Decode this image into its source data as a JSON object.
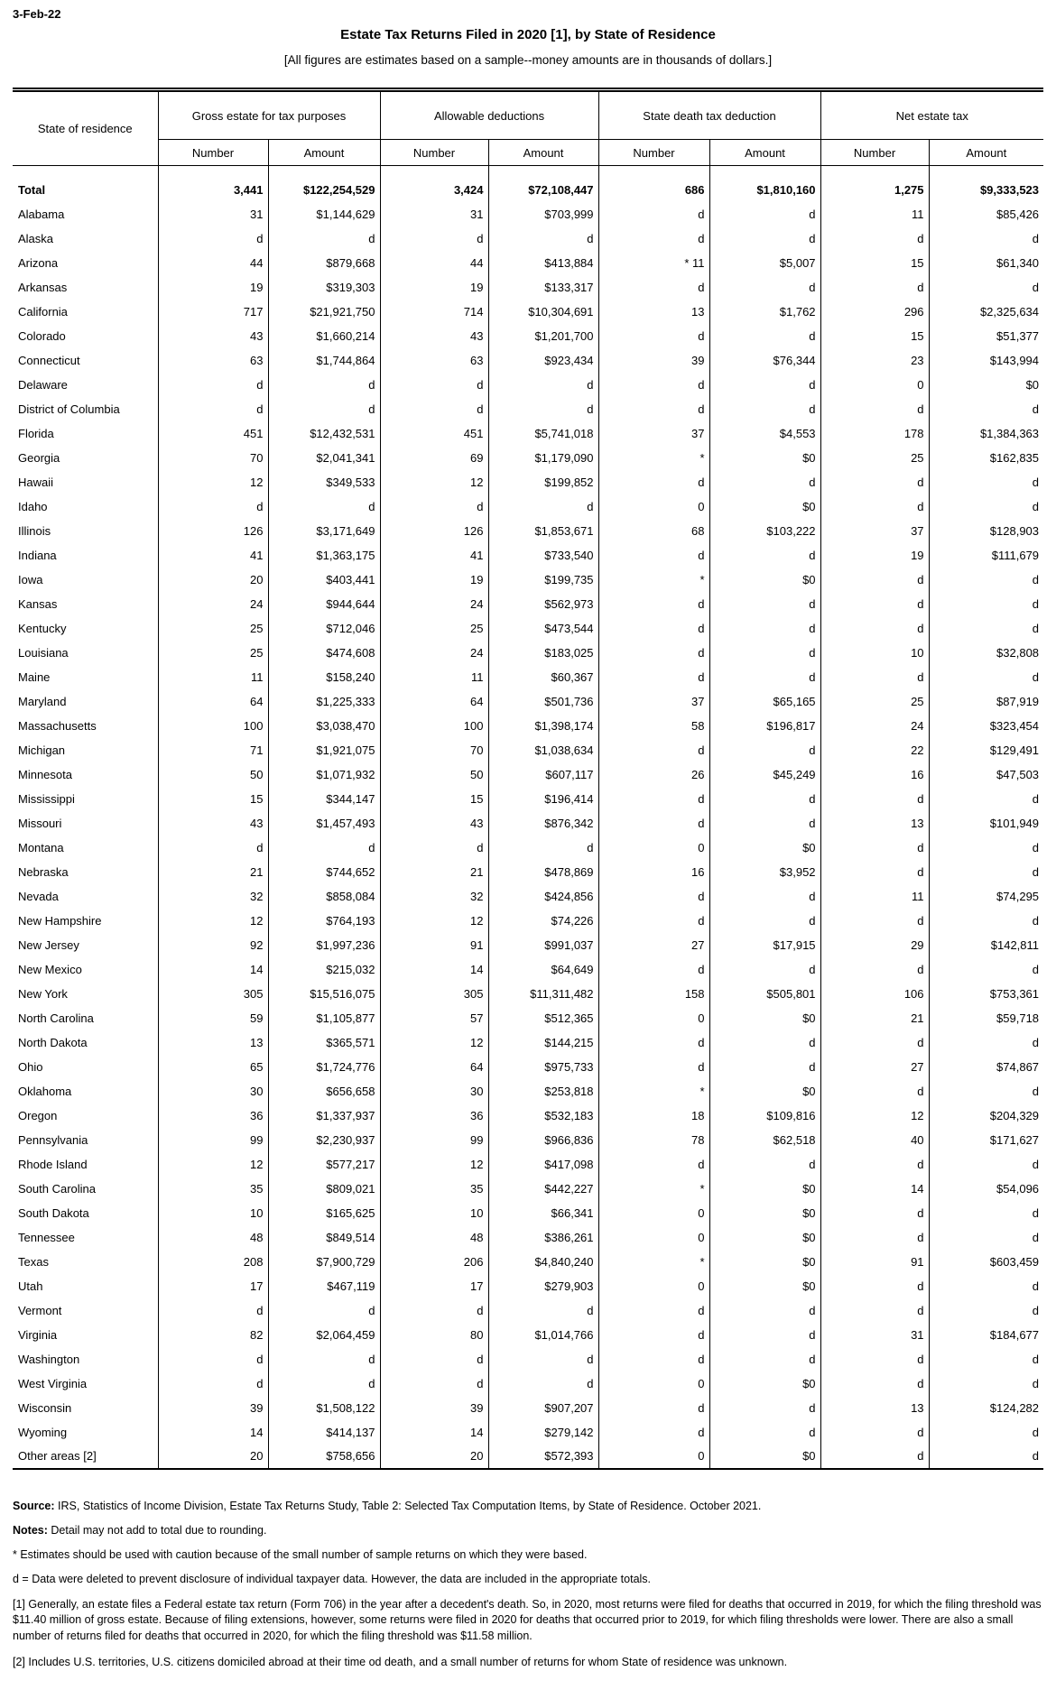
{
  "page": {
    "date": "3-Feb-22",
    "title": "Estate Tax Returns Filed in 2020 [1], by State of Residence",
    "subtitle": "[All figures are estimates based on a sample--money amounts are in thousands of dollars.]"
  },
  "table": {
    "row_header": "State of residence",
    "col_groups": [
      {
        "label": "Gross estate for tax purposes"
      },
      {
        "label": "Allowable deductions"
      },
      {
        "label": "State death tax deduction"
      },
      {
        "label": "Net estate tax"
      }
    ],
    "sub_headers": [
      "Number",
      "Amount"
    ],
    "rows": [
      {
        "state": "Total",
        "bold": true,
        "values": [
          "3,441",
          "$122,254,529",
          "3,424",
          "$72,108,447",
          "686",
          "$1,810,160",
          "1,275",
          "$9,333,523"
        ]
      },
      {
        "state": "Alabama",
        "values": [
          "31",
          "$1,144,629",
          "31",
          "$703,999",
          "d",
          "d",
          "11",
          "$85,426"
        ]
      },
      {
        "state": "Alaska",
        "values": [
          "d",
          "d",
          "d",
          "d",
          "d",
          "d",
          "d",
          "d"
        ]
      },
      {
        "state": "Arizona",
        "values": [
          "44",
          "$879,668",
          "44",
          "$413,884",
          "* 11",
          "$5,007",
          "15",
          "$61,340"
        ]
      },
      {
        "state": "Arkansas",
        "values": [
          "19",
          "$319,303",
          "19",
          "$133,317",
          "d",
          "d",
          "d",
          "d"
        ]
      },
      {
        "state": "California",
        "values": [
          "717",
          "$21,921,750",
          "714",
          "$10,304,691",
          "13",
          "$1,762",
          "296",
          "$2,325,634"
        ]
      },
      {
        "state": "Colorado",
        "values": [
          "43",
          "$1,660,214",
          "43",
          "$1,201,700",
          "d",
          "d",
          "15",
          "$51,377"
        ]
      },
      {
        "state": "Connecticut",
        "values": [
          "63",
          "$1,744,864",
          "63",
          "$923,434",
          "39",
          "$76,344",
          "23",
          "$143,994"
        ]
      },
      {
        "state": "Delaware",
        "values": [
          "d",
          "d",
          "d",
          "d",
          "d",
          "d",
          "0",
          "$0"
        ]
      },
      {
        "state": "District of Columbia",
        "values": [
          "d",
          "d",
          "d",
          "d",
          "d",
          "d",
          "d",
          "d"
        ]
      },
      {
        "state": "Florida",
        "values": [
          "451",
          "$12,432,531",
          "451",
          "$5,741,018",
          "37",
          "$4,553",
          "178",
          "$1,384,363"
        ]
      },
      {
        "state": "Georgia",
        "values": [
          "70",
          "$2,041,341",
          "69",
          "$1,179,090",
          "*",
          "$0",
          "25",
          "$162,835"
        ]
      },
      {
        "state": "Hawaii",
        "values": [
          "12",
          "$349,533",
          "12",
          "$199,852",
          "d",
          "d",
          "d",
          "d"
        ]
      },
      {
        "state": "Idaho",
        "values": [
          "d",
          "d",
          "d",
          "d",
          "0",
          "$0",
          "d",
          "d"
        ]
      },
      {
        "state": "Illinois",
        "values": [
          "126",
          "$3,171,649",
          "126",
          "$1,853,671",
          "68",
          "$103,222",
          "37",
          "$128,903"
        ]
      },
      {
        "state": "Indiana",
        "values": [
          "41",
          "$1,363,175",
          "41",
          "$733,540",
          "d",
          "d",
          "19",
          "$111,679"
        ]
      },
      {
        "state": "Iowa",
        "values": [
          "20",
          "$403,441",
          "19",
          "$199,735",
          "*",
          "$0",
          "d",
          "d"
        ]
      },
      {
        "state": "Kansas",
        "values": [
          "24",
          "$944,644",
          "24",
          "$562,973",
          "d",
          "d",
          "d",
          "d"
        ]
      },
      {
        "state": "Kentucky",
        "values": [
          "25",
          "$712,046",
          "25",
          "$473,544",
          "d",
          "d",
          "d",
          "d"
        ]
      },
      {
        "state": "Louisiana",
        "values": [
          "25",
          "$474,608",
          "24",
          "$183,025",
          "d",
          "d",
          "10",
          "$32,808"
        ]
      },
      {
        "state": "Maine",
        "values": [
          "11",
          "$158,240",
          "11",
          "$60,367",
          "d",
          "d",
          "d",
          "d"
        ]
      },
      {
        "state": "Maryland",
        "values": [
          "64",
          "$1,225,333",
          "64",
          "$501,736",
          "37",
          "$65,165",
          "25",
          "$87,919"
        ]
      },
      {
        "state": "Massachusetts",
        "values": [
          "100",
          "$3,038,470",
          "100",
          "$1,398,174",
          "58",
          "$196,817",
          "24",
          "$323,454"
        ]
      },
      {
        "state": "Michigan",
        "values": [
          "71",
          "$1,921,075",
          "70",
          "$1,038,634",
          "d",
          "d",
          "22",
          "$129,491"
        ]
      },
      {
        "state": "Minnesota",
        "values": [
          "50",
          "$1,071,932",
          "50",
          "$607,117",
          "26",
          "$45,249",
          "16",
          "$47,503"
        ]
      },
      {
        "state": "Mississippi",
        "values": [
          "15",
          "$344,147",
          "15",
          "$196,414",
          "d",
          "d",
          "d",
          "d"
        ]
      },
      {
        "state": "Missouri",
        "values": [
          "43",
          "$1,457,493",
          "43",
          "$876,342",
          "d",
          "d",
          "13",
          "$101,949"
        ]
      },
      {
        "state": "Montana",
        "values": [
          "d",
          "d",
          "d",
          "d",
          "0",
          "$0",
          "d",
          "d"
        ]
      },
      {
        "state": "Nebraska",
        "values": [
          "21",
          "$744,652",
          "21",
          "$478,869",
          "16",
          "$3,952",
          "d",
          "d"
        ]
      },
      {
        "state": "Nevada",
        "values": [
          "32",
          "$858,084",
          "32",
          "$424,856",
          "d",
          "d",
          "11",
          "$74,295"
        ]
      },
      {
        "state": "New Hampshire",
        "values": [
          "12",
          "$764,193",
          "12",
          "$74,226",
          "d",
          "d",
          "d",
          "d"
        ]
      },
      {
        "state": "New Jersey",
        "values": [
          "92",
          "$1,997,236",
          "91",
          "$991,037",
          "27",
          "$17,915",
          "29",
          "$142,811"
        ]
      },
      {
        "state": "New Mexico",
        "values": [
          "14",
          "$215,032",
          "14",
          "$64,649",
          "d",
          "d",
          "d",
          "d"
        ]
      },
      {
        "state": "New York",
        "values": [
          "305",
          "$15,516,075",
          "305",
          "$11,311,482",
          "158",
          "$505,801",
          "106",
          "$753,361"
        ]
      },
      {
        "state": "North Carolina",
        "values": [
          "59",
          "$1,105,877",
          "57",
          "$512,365",
          "0",
          "$0",
          "21",
          "$59,718"
        ]
      },
      {
        "state": "North Dakota",
        "values": [
          "13",
          "$365,571",
          "12",
          "$144,215",
          "d",
          "d",
          "d",
          "d"
        ]
      },
      {
        "state": "Ohio",
        "values": [
          "65",
          "$1,724,776",
          "64",
          "$975,733",
          "d",
          "d",
          "27",
          "$74,867"
        ]
      },
      {
        "state": "Oklahoma",
        "values": [
          "30",
          "$656,658",
          "30",
          "$253,818",
          "*",
          "$0",
          "d",
          "d"
        ]
      },
      {
        "state": "Oregon",
        "values": [
          "36",
          "$1,337,937",
          "36",
          "$532,183",
          "18",
          "$109,816",
          "12",
          "$204,329"
        ]
      },
      {
        "state": "Pennsylvania",
        "values": [
          "99",
          "$2,230,937",
          "99",
          "$966,836",
          "78",
          "$62,518",
          "40",
          "$171,627"
        ]
      },
      {
        "state": "Rhode Island",
        "values": [
          "12",
          "$577,217",
          "12",
          "$417,098",
          "d",
          "d",
          "d",
          "d"
        ]
      },
      {
        "state": "South Carolina",
        "values": [
          "35",
          "$809,021",
          "35",
          "$442,227",
          "*",
          "$0",
          "14",
          "$54,096"
        ]
      },
      {
        "state": "South Dakota",
        "values": [
          "10",
          "$165,625",
          "10",
          "$66,341",
          "0",
          "$0",
          "d",
          "d"
        ]
      },
      {
        "state": "Tennessee",
        "values": [
          "48",
          "$849,514",
          "48",
          "$386,261",
          "0",
          "$0",
          "d",
          "d"
        ]
      },
      {
        "state": "Texas",
        "values": [
          "208",
          "$7,900,729",
          "206",
          "$4,840,240",
          "*",
          "$0",
          "91",
          "$603,459"
        ]
      },
      {
        "state": "Utah",
        "values": [
          "17",
          "$467,119",
          "17",
          "$279,903",
          "0",
          "$0",
          "d",
          "d"
        ]
      },
      {
        "state": "Vermont",
        "values": [
          "d",
          "d",
          "d",
          "d",
          "d",
          "d",
          "d",
          "d"
        ]
      },
      {
        "state": "Virginia",
        "values": [
          "82",
          "$2,064,459",
          "80",
          "$1,014,766",
          "d",
          "d",
          "31",
          "$184,677"
        ]
      },
      {
        "state": "Washington",
        "values": [
          "d",
          "d",
          "d",
          "d",
          "d",
          "d",
          "d",
          "d"
        ]
      },
      {
        "state": "West Virginia",
        "values": [
          "d",
          "d",
          "d",
          "d",
          "0",
          "$0",
          "d",
          "d"
        ]
      },
      {
        "state": "Wisconsin",
        "values": [
          "39",
          "$1,508,122",
          "39",
          "$907,207",
          "d",
          "d",
          "13",
          "$124,282"
        ]
      },
      {
        "state": "Wyoming",
        "values": [
          "14",
          "$414,137",
          "14",
          "$279,142",
          "d",
          "d",
          "d",
          "d"
        ]
      },
      {
        "state": "Other areas [2]",
        "values": [
          "20",
          "$758,656",
          "20",
          "$572,393",
          "0",
          "$0",
          "d",
          "d"
        ]
      }
    ]
  },
  "footnotes": {
    "source_label": "Source:",
    "source_text": "IRS, Statistics of Income Division, Estate Tax Returns Study, Table 2: Selected Tax Computation Items, by State of Residence. October 2021.",
    "notes_label": "Notes:",
    "notes_text": "Detail may not add to total due to rounding.",
    "asterisk_note": "* Estimates should be used with caution because of the small number of sample returns on which they were based.",
    "d_note": "d = Data were deleted to prevent disclosure of individual taxpayer data.  However, the data are included in the appropriate totals.",
    "note1": "[1] Generally, an estate files a Federal estate tax return (Form 706) in the year after a decedent's death. So, in 2020, most returns were filed for deaths that occurred in 2019, for which the filing threshold was $11.40 million of gross estate. Because of filing extensions, however, some returns were filed in 2020 for deaths that occurred prior to 2019, for which filing thresholds were lower. There are also a small number of returns filed for deaths that occurred in 2020, for which the filing threshold was $11.58 million.",
    "note2": "[2] Includes U.S. territories, U.S. citizens domiciled abroad at their time od death, and a small number of returns for whom State of residence was unknown."
  }
}
